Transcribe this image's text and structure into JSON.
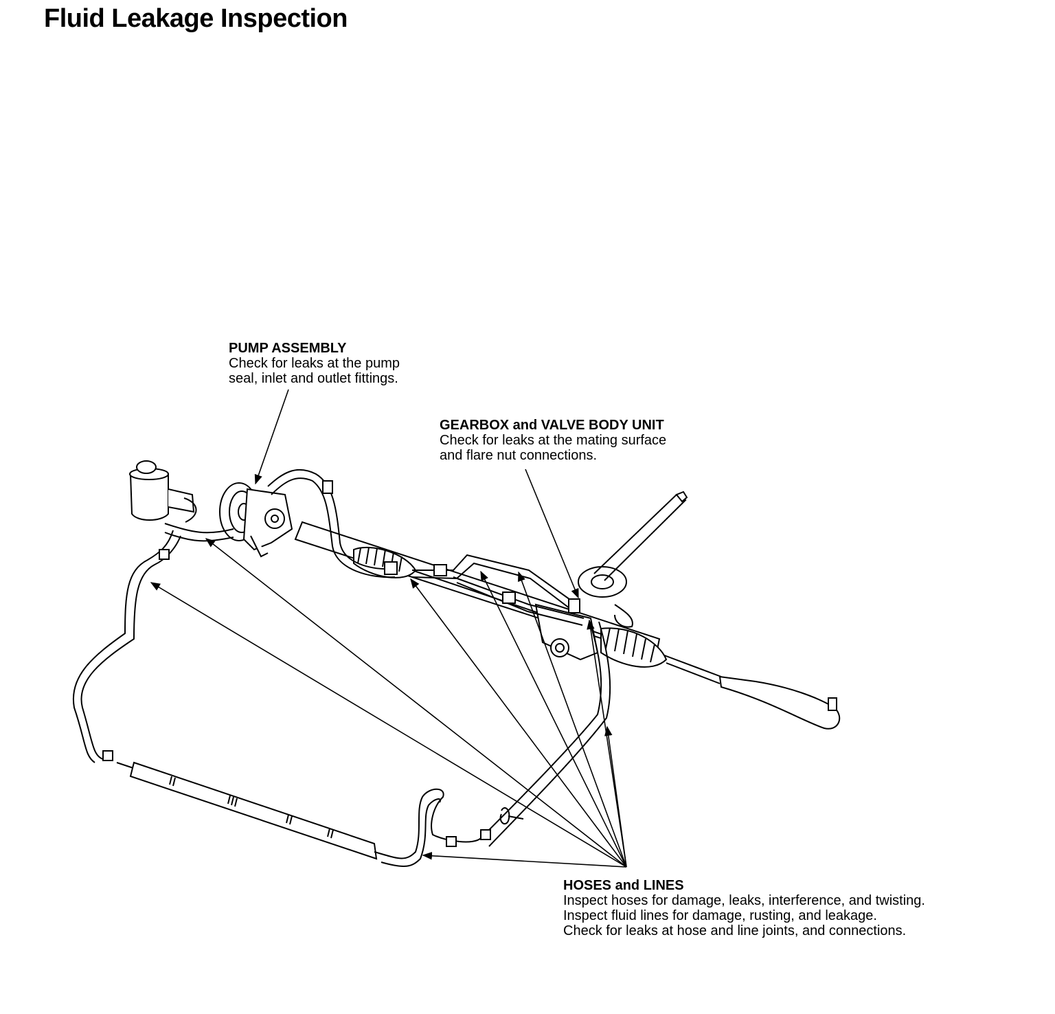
{
  "page": {
    "title": "Fluid Leakage Inspection"
  },
  "callouts": {
    "pump": {
      "heading": "PUMP ASSEMBLY",
      "lines": [
        "Check for leaks at the pump",
        "seal, inlet and outlet fittings."
      ]
    },
    "gearbox": {
      "heading": "GEARBOX and VALVE BODY UNIT",
      "lines": [
        "Check for leaks at the mating surface",
        "and flare nut connections."
      ]
    },
    "hoses": {
      "heading": "HOSES and LINES",
      "lines": [
        "Inspect hoses for damage, leaks, interference, and twisting.",
        "Inspect fluid lines for damage, rusting, and leakage.",
        "Check for leaks at hose and line joints, and connections."
      ]
    }
  }
}
